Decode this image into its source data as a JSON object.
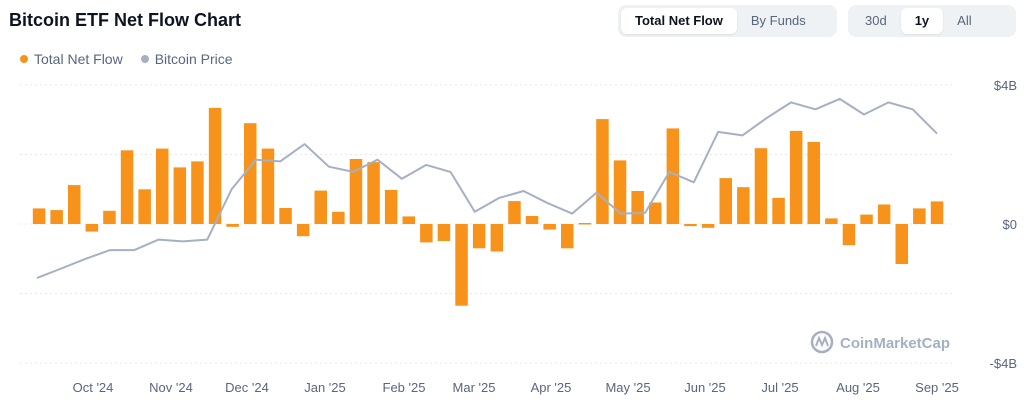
{
  "header": {
    "title": "Bitcoin ETF Net Flow Chart"
  },
  "view_toggle": {
    "options": [
      "Total Net Flow",
      "By Funds"
    ],
    "active": "Total Net Flow"
  },
  "range_toggle": {
    "options": [
      "30d",
      "1y",
      "All"
    ],
    "active": "1y"
  },
  "watermark": "CoinMarketCap",
  "colors": {
    "flow": "#f7931a",
    "price": "#a6b0c3",
    "grid": "#e5e8ed"
  },
  "chart_data": {
    "type": "bar",
    "legend": [
      "Total Net Flow",
      "Bitcoin Price"
    ],
    "y_ticks": [
      "$4B",
      "$0",
      "-$4B"
    ],
    "ylim": [
      -4,
      4
    ],
    "x_ticks": [
      "Oct '24",
      "Nov '24",
      "Dec '24",
      "Jan '25",
      "Feb '25",
      "Mar '25",
      "Apr '25",
      "May '25",
      "Jun '25",
      "Jul '25",
      "Aug '25",
      "Sep '25"
    ],
    "series": [
      {
        "name": "Total Net Flow",
        "type": "bar",
        "values": [
          0.45,
          0.4,
          1.12,
          -0.22,
          0.38,
          2.12,
          1.0,
          2.17,
          1.63,
          1.8,
          3.34,
          -0.08,
          2.9,
          2.17,
          0.46,
          -0.35,
          0.96,
          0.35,
          1.87,
          1.78,
          0.98,
          0.22,
          -0.53,
          -0.49,
          -2.35,
          -0.7,
          -0.79,
          0.66,
          0.23,
          -0.16,
          -0.7,
          0.03,
          3.02,
          1.83,
          0.95,
          0.62,
          2.75,
          -0.06,
          -0.11,
          1.32,
          1.06,
          2.18,
          0.75,
          2.68,
          2.36,
          0.16,
          -0.61,
          0.27,
          0.56,
          -1.15,
          0.45,
          0.65
        ]
      },
      {
        "name": "Bitcoin Price",
        "type": "line",
        "values": [
          -1.55,
          -1.28,
          -1.0,
          -0.75,
          -0.75,
          -0.45,
          -0.5,
          -0.45,
          1.0,
          1.85,
          1.8,
          2.3,
          1.65,
          1.5,
          1.85,
          1.3,
          1.7,
          1.5,
          0.35,
          0.75,
          0.95,
          0.6,
          0.3,
          0.9,
          0.3,
          0.32,
          1.5,
          1.2,
          2.65,
          2.55,
          3.05,
          3.5,
          3.3,
          3.6,
          3.15,
          3.5,
          3.3,
          2.6
        ]
      }
    ]
  }
}
